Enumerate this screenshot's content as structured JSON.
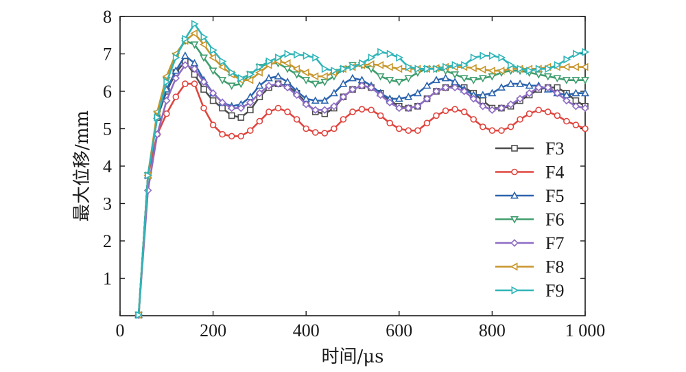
{
  "chart_data": {
    "type": "line",
    "title": "",
    "xlabel": "时间/μs",
    "ylabel": "最大位移/mm",
    "xlim": [
      0,
      1000
    ],
    "ylim": [
      0,
      8
    ],
    "xticks": [
      0,
      200,
      400,
      600,
      800,
      1000
    ],
    "xtick_labels": [
      "0",
      "200",
      "400",
      "600",
      "800",
      "1 000"
    ],
    "yticks": [
      1,
      2,
      3,
      4,
      5,
      6,
      7,
      8
    ],
    "ytick_labels": [
      "1",
      "2",
      "3",
      "4",
      "5",
      "6",
      "7",
      "8"
    ],
    "grid": false,
    "legend_position": "right",
    "x": [
      40,
      60,
      80,
      100,
      120,
      140,
      160,
      180,
      200,
      220,
      240,
      260,
      280,
      300,
      320,
      340,
      360,
      380,
      400,
      420,
      440,
      460,
      480,
      500,
      520,
      540,
      560,
      580,
      600,
      620,
      640,
      660,
      680,
      700,
      720,
      740,
      760,
      780,
      800,
      820,
      840,
      860,
      880,
      900,
      920,
      940,
      960,
      980,
      1000
    ],
    "series": [
      {
        "name": "F3",
        "color": "#4d4d4d",
        "marker": "square",
        "values": [
          0.02,
          3.75,
          5.3,
          6.0,
          6.5,
          6.8,
          6.45,
          6.05,
          5.75,
          5.55,
          5.35,
          5.3,
          5.5,
          5.85,
          6.1,
          6.2,
          6.15,
          5.95,
          5.7,
          5.45,
          5.4,
          5.55,
          5.85,
          6.05,
          6.15,
          6.1,
          5.95,
          5.75,
          5.6,
          5.55,
          5.6,
          5.8,
          6.0,
          6.1,
          6.15,
          6.1,
          5.95,
          5.75,
          5.55,
          5.55,
          5.6,
          5.75,
          5.9,
          6.05,
          6.1,
          6.1,
          5.95,
          5.75,
          5.6
        ]
      },
      {
        "name": "F4",
        "color": "#e0453f",
        "marker": "circle",
        "values": [
          0.02,
          3.75,
          4.85,
          5.4,
          5.85,
          6.2,
          6.2,
          5.55,
          5.1,
          4.85,
          4.8,
          4.8,
          4.95,
          5.2,
          5.45,
          5.55,
          5.45,
          5.25,
          5.0,
          4.9,
          4.88,
          5.0,
          5.25,
          5.45,
          5.52,
          5.5,
          5.35,
          5.15,
          5.0,
          4.95,
          4.95,
          5.15,
          5.35,
          5.48,
          5.52,
          5.45,
          5.25,
          5.05,
          4.95,
          4.95,
          5.05,
          5.25,
          5.4,
          5.5,
          5.45,
          5.35,
          5.2,
          5.1,
          5.0
        ]
      },
      {
        "name": "F5",
        "color": "#2c64ae",
        "marker": "triangle-up",
        "values": [
          0.02,
          3.75,
          5.35,
          6.05,
          6.55,
          6.95,
          6.75,
          6.3,
          5.95,
          5.7,
          5.6,
          5.65,
          5.85,
          6.15,
          6.35,
          6.4,
          6.25,
          6.0,
          5.8,
          5.75,
          5.75,
          5.95,
          6.2,
          6.35,
          6.3,
          6.15,
          5.95,
          5.8,
          5.8,
          5.85,
          5.95,
          6.15,
          6.3,
          6.35,
          6.25,
          6.05,
          5.9,
          5.9,
          5.95,
          6.1,
          6.2,
          6.2,
          6.15,
          6.15,
          6.05,
          5.95,
          5.9,
          5.95,
          5.95
        ]
      },
      {
        "name": "F6",
        "color": "#3f9e6e",
        "marker": "triangle-down",
        "values": [
          0.02,
          3.75,
          5.4,
          6.3,
          6.95,
          7.35,
          7.25,
          6.9,
          6.55,
          6.3,
          6.15,
          6.2,
          6.45,
          6.65,
          6.75,
          6.75,
          6.6,
          6.45,
          6.3,
          6.2,
          6.25,
          6.4,
          6.6,
          6.7,
          6.7,
          6.6,
          6.4,
          6.3,
          6.25,
          6.35,
          6.5,
          6.6,
          6.6,
          6.55,
          6.45,
          6.35,
          6.3,
          6.35,
          6.4,
          6.5,
          6.55,
          6.55,
          6.5,
          6.45,
          6.4,
          6.35,
          6.3,
          6.3,
          6.3
        ]
      },
      {
        "name": "F7",
        "color": "#8e6cc4",
        "marker": "diamond",
        "values": [
          0.02,
          3.35,
          4.85,
          5.75,
          6.35,
          6.7,
          6.6,
          6.25,
          5.95,
          5.7,
          5.55,
          5.55,
          5.7,
          5.95,
          6.15,
          6.2,
          6.1,
          5.9,
          5.65,
          5.5,
          5.5,
          5.6,
          5.85,
          6.05,
          6.15,
          6.1,
          5.9,
          5.7,
          5.55,
          5.55,
          5.6,
          5.8,
          6.0,
          6.1,
          6.1,
          6.0,
          5.8,
          5.6,
          5.5,
          5.55,
          5.65,
          5.8,
          5.95,
          6.1,
          6.1,
          5.95,
          5.75,
          5.6,
          5.55
        ]
      },
      {
        "name": "F8",
        "color": "#c8962c",
        "marker": "triangle-left",
        "values": [
          0.02,
          3.75,
          5.45,
          6.4,
          7.0,
          7.35,
          7.55,
          7.25,
          6.9,
          6.65,
          6.45,
          6.3,
          6.3,
          6.5,
          6.7,
          6.8,
          6.75,
          6.6,
          6.5,
          6.4,
          6.4,
          6.5,
          6.6,
          6.65,
          6.7,
          6.72,
          6.7,
          6.65,
          6.6,
          6.6,
          6.6,
          6.6,
          6.62,
          6.65,
          6.65,
          6.65,
          6.62,
          6.58,
          6.55,
          6.55,
          6.6,
          6.6,
          6.6,
          6.6,
          6.65,
          6.65,
          6.65,
          6.65,
          6.65
        ]
      },
      {
        "name": "F9",
        "color": "#2fb5b8",
        "marker": "triangle-right",
        "values": [
          0.02,
          3.75,
          5.3,
          6.25,
          6.9,
          7.4,
          7.8,
          7.45,
          7.1,
          6.8,
          6.5,
          6.35,
          6.45,
          6.65,
          6.8,
          6.9,
          7.0,
          6.98,
          6.95,
          6.9,
          6.6,
          6.55,
          6.6,
          6.65,
          6.75,
          6.9,
          7.05,
          7.0,
          6.9,
          6.65,
          6.6,
          6.6,
          6.6,
          6.65,
          6.7,
          6.7,
          6.9,
          6.95,
          6.95,
          6.9,
          6.7,
          6.6,
          6.55,
          6.6,
          6.6,
          6.7,
          6.85,
          7.0,
          7.05
        ]
      }
    ]
  }
}
